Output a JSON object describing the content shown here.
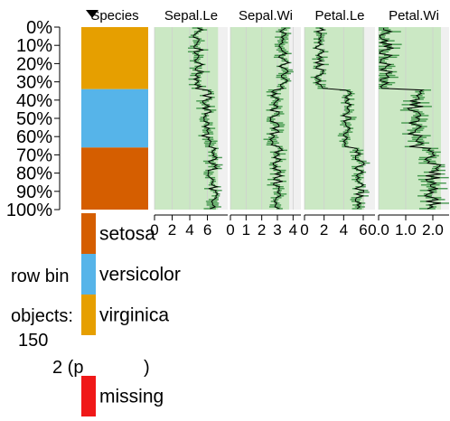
{
  "chart_data": {
    "type": "tableplot",
    "sort_column": "Species",
    "columns": [
      {
        "label": "Species",
        "kind": "categorical"
      },
      {
        "label": "Sepal.Le",
        "kind": "numeric",
        "ticks": [
          "0",
          "2",
          "4",
          "6"
        ],
        "xlim": [
          0,
          8.3
        ],
        "means": [
          5.0,
          5.0,
          5.0,
          5.0,
          5.0,
          5.0,
          5.0,
          5.0,
          5.0,
          5.0,
          5.0,
          5.0,
          5.0,
          5.0,
          5.0,
          5.0,
          5.0,
          5.0,
          5.0,
          5.0,
          5.0,
          5.0,
          5.0,
          5.0,
          5.0,
          5.0,
          5.0,
          5.0,
          5.0,
          5.0,
          5.0,
          5.0,
          5.0,
          5.0,
          5.9,
          5.9,
          5.9,
          5.9,
          5.9,
          5.9,
          5.9,
          5.9,
          5.9,
          5.9,
          5.9,
          5.9,
          5.9,
          5.9,
          5.9,
          5.9,
          5.9,
          5.9,
          5.9,
          5.9,
          5.9,
          5.9,
          5.9,
          5.9,
          5.9,
          5.9,
          5.9,
          5.9,
          5.9,
          5.9,
          5.9,
          5.9,
          6.6,
          6.6,
          6.6,
          6.6,
          6.6,
          6.6,
          6.6,
          6.6,
          6.6,
          6.6,
          6.6,
          6.6,
          6.6,
          6.6,
          6.6,
          6.6,
          6.6,
          6.6,
          6.6,
          6.6,
          6.6,
          6.6,
          6.6,
          6.6,
          6.6,
          6.6,
          6.6,
          6.6,
          6.6,
          6.6,
          6.6,
          6.6,
          6.6,
          6.6
        ],
        "noise": 0.6
      },
      {
        "label": "Sepal.Wi",
        "kind": "numeric",
        "ticks": [
          "0",
          "1",
          "2",
          "3",
          "4"
        ],
        "xlim": [
          0,
          4.5
        ],
        "means": [
          3.4,
          3.4,
          3.4,
          3.4,
          3.4,
          3.4,
          3.4,
          3.4,
          3.4,
          3.4,
          3.4,
          3.4,
          3.4,
          3.4,
          3.4,
          3.4,
          3.4,
          3.4,
          3.4,
          3.4,
          3.4,
          3.4,
          3.4,
          3.4,
          3.4,
          3.4,
          3.4,
          3.4,
          3.4,
          3.4,
          3.4,
          3.4,
          3.4,
          3.4,
          2.8,
          2.8,
          2.8,
          2.8,
          2.8,
          2.8,
          2.8,
          2.8,
          2.8,
          2.8,
          2.8,
          2.8,
          2.8,
          2.8,
          2.8,
          2.8,
          2.8,
          2.8,
          2.8,
          2.8,
          2.8,
          2.8,
          2.8,
          2.8,
          2.8,
          2.8,
          2.8,
          2.8,
          2.8,
          2.8,
          2.8,
          2.8,
          3.0,
          3.0,
          3.0,
          3.0,
          3.0,
          3.0,
          3.0,
          3.0,
          3.0,
          3.0,
          3.0,
          3.0,
          3.0,
          3.0,
          3.0,
          3.0,
          3.0,
          3.0,
          3.0,
          3.0,
          3.0,
          3.0,
          3.0,
          3.0,
          3.0,
          3.0,
          3.0,
          3.0,
          3.0,
          3.0,
          3.0,
          3.0,
          3.0,
          3.0
        ],
        "noise": 0.35
      },
      {
        "label": "Petal.Le",
        "kind": "numeric",
        "ticks": [
          "0",
          "2",
          "4",
          "6"
        ],
        "xlim": [
          0,
          7.2
        ],
        "means": [
          1.5,
          1.5,
          1.5,
          1.5,
          1.5,
          1.5,
          1.5,
          1.5,
          1.5,
          1.5,
          1.5,
          1.5,
          1.5,
          1.5,
          1.5,
          1.5,
          1.5,
          1.5,
          1.5,
          1.5,
          1.5,
          1.5,
          1.5,
          1.5,
          1.5,
          1.5,
          1.5,
          1.5,
          1.5,
          1.5,
          1.5,
          1.5,
          1.5,
          1.5,
          4.3,
          4.3,
          4.3,
          4.3,
          4.3,
          4.3,
          4.3,
          4.3,
          4.3,
          4.3,
          4.3,
          4.3,
          4.3,
          4.3,
          4.3,
          4.3,
          4.3,
          4.3,
          4.3,
          4.3,
          4.3,
          4.3,
          4.3,
          4.3,
          4.3,
          4.3,
          4.3,
          4.3,
          4.3,
          4.3,
          4.3,
          4.3,
          5.6,
          5.6,
          5.6,
          5.6,
          5.6,
          5.6,
          5.6,
          5.6,
          5.6,
          5.6,
          5.6,
          5.6,
          5.6,
          5.6,
          5.6,
          5.6,
          5.6,
          5.6,
          5.6,
          5.6,
          5.6,
          5.6,
          5.6,
          5.6,
          5.6,
          5.6,
          5.6,
          5.6,
          5.6,
          5.6,
          5.6,
          5.6,
          5.6,
          5.6
        ],
        "noise": 0.5
      },
      {
        "label": "Petal.Wi",
        "kind": "numeric",
        "ticks": [
          "0.0",
          "1.0",
          "2.0"
        ],
        "xlim": [
          0,
          2.6
        ],
        "means": [
          0.25,
          0.25,
          0.25,
          0.25,
          0.25,
          0.25,
          0.25,
          0.25,
          0.25,
          0.25,
          0.25,
          0.25,
          0.25,
          0.25,
          0.25,
          0.25,
          0.25,
          0.25,
          0.25,
          0.25,
          0.25,
          0.25,
          0.25,
          0.25,
          0.25,
          0.25,
          0.25,
          0.25,
          0.25,
          0.25,
          0.25,
          0.25,
          0.25,
          0.25,
          1.35,
          1.35,
          1.35,
          1.35,
          1.35,
          1.35,
          1.35,
          1.35,
          1.35,
          1.35,
          1.35,
          1.35,
          1.35,
          1.35,
          1.35,
          1.35,
          1.35,
          1.35,
          1.35,
          1.35,
          1.35,
          1.35,
          1.35,
          1.35,
          1.35,
          1.35,
          1.35,
          1.35,
          1.35,
          1.35,
          1.35,
          1.35,
          2.0,
          2.0,
          2.0,
          2.0,
          2.0,
          2.0,
          2.0,
          2.0,
          2.0,
          2.0,
          2.0,
          2.0,
          2.0,
          2.0,
          2.0,
          2.0,
          2.0,
          2.0,
          2.0,
          2.0,
          2.0,
          2.0,
          2.0,
          2.0,
          2.0,
          2.0,
          2.0,
          2.0,
          2.0,
          2.0,
          2.0,
          2.0,
          2.0,
          2.0
        ],
        "noise": 0.3
      }
    ],
    "row_ticks": [
      "0%",
      "10%",
      "20%",
      "30%",
      "40%",
      "50%",
      "60%",
      "70%",
      "80%",
      "90%",
      "100%"
    ],
    "species_segments": [
      {
        "name": "virginica",
        "from": 0,
        "to": 34,
        "color": "#E69F00"
      },
      {
        "name": "versicolor",
        "from": 34,
        "to": 66,
        "color": "#56B4E9"
      },
      {
        "name": "setosa",
        "from": 66,
        "to": 100,
        "color": "#D55E00"
      }
    ],
    "legend": [
      {
        "label": "setosa",
        "color": "#D55E00"
      },
      {
        "label": "versicolor",
        "color": "#56B4E9"
      },
      {
        "label": "virginica",
        "color": "#E69F00"
      },
      {
        "label": "missing",
        "color": "#F01818"
      }
    ],
    "info": {
      "row_bins_label": "row bin",
      "objects_label": "objects:",
      "objects_value": "150",
      "per_bin_label": "2 (p",
      "per_bin_suffix": ")"
    },
    "colors": {
      "panel_bg": "#F0F0F0",
      "range_fill": "#CBE8C4",
      "bar_fill": "#2E8B3A",
      "mean_line": "#000000",
      "grid": "#CFCFCF"
    }
  }
}
